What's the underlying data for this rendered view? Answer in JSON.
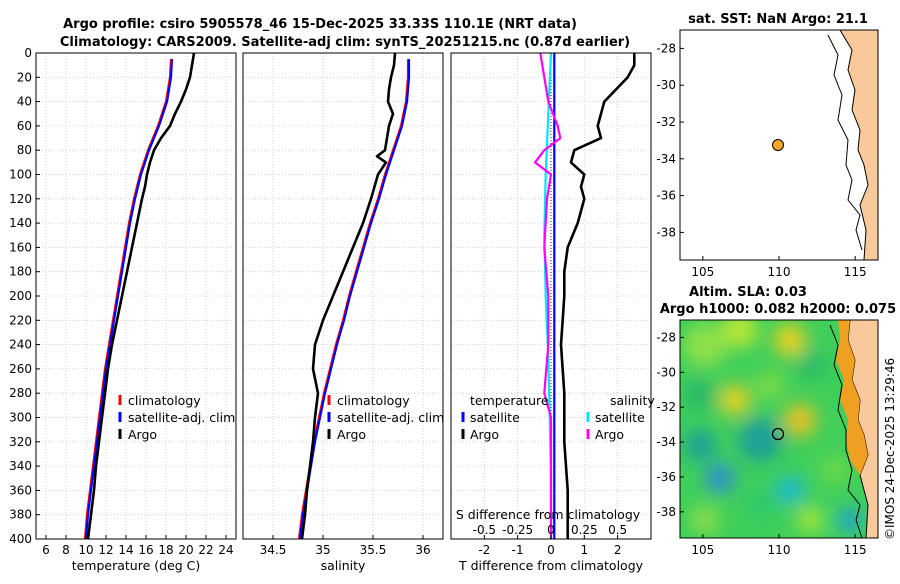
{
  "title_line1": "Argo profile: csiro 5905578_46 15-Dec-2025 33.33S 110.1E (NRT data)",
  "title_line2": "Climatology: CARS2009. Satellite-adj clim: synTS_20251215.nc (0.87d earlier)",
  "timestamp": "©IMOS 24-Dec-2025 13:29:46",
  "chart_data": [
    {
      "type": "line",
      "name": "temperature-profile",
      "xlabel": "temperature (deg C)",
      "ylabel": "",
      "xlim": [
        5,
        25
      ],
      "ylim": [
        400,
        0
      ],
      "xticks": [
        6,
        8,
        10,
        12,
        14,
        16,
        18,
        20,
        22,
        24
      ],
      "yticks": [
        0,
        20,
        40,
        60,
        80,
        100,
        120,
        140,
        160,
        180,
        200,
        220,
        240,
        260,
        280,
        300,
        320,
        340,
        360,
        380,
        400
      ],
      "grid": true,
      "legend": [
        "climatology",
        "satellite-adj. clim",
        "Argo"
      ],
      "series": [
        {
          "name": "climatology",
          "color": "#ff0000",
          "depth": [
            5,
            20,
            40,
            60,
            80,
            100,
            120,
            140,
            160,
            180,
            200,
            220,
            240,
            260,
            280,
            300,
            320,
            340,
            360,
            380,
            400
          ],
          "values": [
            18.5,
            18.4,
            18.0,
            17.2,
            16.2,
            15.4,
            14.8,
            14.3,
            13.9,
            13.5,
            13.1,
            12.7,
            12.3,
            11.9,
            11.6,
            11.3,
            11.0,
            10.7,
            10.4,
            10.1,
            9.9
          ]
        },
        {
          "name": "satellite-adj. clim",
          "color": "#0000ff",
          "depth": [
            5,
            20,
            40,
            60,
            80,
            100,
            120,
            140,
            160,
            180,
            200,
            220,
            240,
            260,
            280,
            300,
            320,
            340,
            360,
            380,
            400
          ],
          "values": [
            18.6,
            18.5,
            18.1,
            17.3,
            16.3,
            15.5,
            14.9,
            14.4,
            14.0,
            13.6,
            13.2,
            12.8,
            12.4,
            12.0,
            11.7,
            11.4,
            11.1,
            10.8,
            10.5,
            10.2,
            10.0
          ]
        },
        {
          "name": "Argo",
          "color": "#000000",
          "depth": [
            0,
            10,
            20,
            30,
            40,
            50,
            60,
            70,
            80,
            90,
            100,
            110,
            120,
            140,
            160,
            180,
            200,
            220,
            240,
            260,
            280,
            300,
            320,
            340,
            360,
            380,
            400
          ],
          "values": [
            20.8,
            20.6,
            20.4,
            20.0,
            19.5,
            18.9,
            18.4,
            17.5,
            16.8,
            16.4,
            16.1,
            15.9,
            15.6,
            15.1,
            14.6,
            14.1,
            13.6,
            13.1,
            12.6,
            12.2,
            11.9,
            11.6,
            11.3,
            11.0,
            10.8,
            10.5,
            10.2
          ]
        }
      ]
    },
    {
      "type": "line",
      "name": "salinity-profile",
      "xlabel": "salinity",
      "xlim": [
        34.2,
        36.2
      ],
      "ylim": [
        400,
        0
      ],
      "xticks": [
        34.5,
        35,
        35.5,
        36
      ],
      "grid": true,
      "legend": [
        "climatology",
        "satellite-adj. clim",
        "Argo"
      ],
      "series": [
        {
          "name": "climatology",
          "color": "#ff0000",
          "depth": [
            5,
            20,
            40,
            60,
            80,
            100,
            120,
            140,
            160,
            180,
            200,
            220,
            240,
            260,
            280,
            300,
            320,
            340,
            360,
            380,
            400
          ],
          "values": [
            35.85,
            35.85,
            35.83,
            35.78,
            35.7,
            35.62,
            35.55,
            35.47,
            35.4,
            35.33,
            35.26,
            35.2,
            35.13,
            35.07,
            35.01,
            34.96,
            34.91,
            34.87,
            34.83,
            34.79,
            34.76
          ]
        },
        {
          "name": "satellite-adj. clim",
          "color": "#0000ff",
          "depth": [
            5,
            20,
            40,
            60,
            80,
            100,
            120,
            140,
            160,
            180,
            200,
            220,
            240,
            260,
            280,
            300,
            320,
            340,
            360,
            380,
            400
          ],
          "values": [
            35.86,
            35.86,
            35.84,
            35.79,
            35.71,
            35.63,
            35.56,
            35.48,
            35.41,
            35.34,
            35.27,
            35.21,
            35.14,
            35.08,
            35.02,
            34.97,
            34.92,
            34.88,
            34.84,
            34.8,
            34.77
          ]
        },
        {
          "name": "Argo",
          "color": "#000000",
          "depth": [
            0,
            10,
            20,
            30,
            40,
            50,
            60,
            70,
            80,
            85,
            90,
            100,
            120,
            140,
            160,
            180,
            200,
            220,
            240,
            260,
            280,
            300,
            320,
            340,
            360,
            380,
            400
          ],
          "values": [
            35.72,
            35.71,
            35.68,
            35.66,
            35.65,
            35.7,
            35.66,
            35.64,
            35.62,
            35.54,
            35.63,
            35.55,
            35.48,
            35.4,
            35.3,
            35.2,
            35.1,
            35.0,
            34.92,
            34.9,
            34.95,
            34.92,
            34.9,
            34.87,
            34.84,
            34.82,
            34.79
          ]
        }
      ]
    },
    {
      "type": "line",
      "name": "difference-profile",
      "xlabel": "T difference from climatology",
      "x2label": "S difference from climatology",
      "xlim": [
        -3,
        3
      ],
      "ylim": [
        400,
        0
      ],
      "xticks": [
        -2,
        -1,
        0,
        1,
        2
      ],
      "x2lim": [
        -0.75,
        0.75
      ],
      "x2ticks": [
        -0.5,
        -0.25,
        0,
        0.25,
        0.5
      ],
      "grid": true,
      "legend_temperature_title": "temperature",
      "legend_salinity_title": "salinity",
      "legend_temperature": [
        "satellite",
        "Argo"
      ],
      "legend_salinity": [
        "satellite",
        "Argo"
      ],
      "series": [
        {
          "name": "temperature satellite",
          "color": "#0000ff",
          "depth": [
            0,
            50,
            100,
            150,
            200,
            250,
            300,
            350,
            400
          ],
          "values": [
            0.1,
            0.1,
            0.1,
            0.1,
            0.1,
            0.1,
            0.1,
            0.1,
            0.1
          ]
        },
        {
          "name": "temperature Argo",
          "color": "#000000",
          "depth": [
            0,
            10,
            20,
            40,
            50,
            60,
            70,
            80,
            90,
            100,
            110,
            120,
            140,
            160,
            180,
            200,
            240,
            280,
            320,
            360,
            400
          ],
          "values": [
            2.5,
            2.5,
            2.3,
            1.6,
            1.5,
            1.4,
            1.5,
            0.7,
            0.6,
            1.0,
            0.9,
            1.0,
            0.8,
            0.5,
            0.4,
            0.4,
            0.3,
            0.4,
            0.4,
            0.5,
            0.5
          ]
        },
        {
          "name": "salinity satellite",
          "color": "#00e5ff",
          "depth": [
            0,
            50,
            100,
            150,
            200,
            250,
            300,
            350,
            400
          ],
          "values": [
            0.0,
            -0.02,
            -0.04,
            -0.05,
            -0.04,
            -0.02,
            -0.01,
            0.0,
            0.0
          ]
        },
        {
          "name": "salinity Argo",
          "color": "#ff00ff",
          "depth": [
            0,
            20,
            40,
            60,
            70,
            80,
            90,
            100,
            120,
            160,
            200,
            240,
            280,
            300,
            320,
            360,
            400
          ],
          "values": [
            -0.08,
            -0.05,
            -0.02,
            0.05,
            0.07,
            -0.05,
            -0.12,
            0.0,
            -0.03,
            -0.05,
            -0.02,
            -0.02,
            -0.05,
            0.0,
            0.0,
            0.0,
            0.0
          ]
        }
      ]
    },
    {
      "type": "map",
      "name": "sst-map",
      "title": "sat. SST: NaN Argo: 21.1",
      "xlim": [
        103.5,
        116.5
      ],
      "ylim": [
        -39.5,
        -27
      ],
      "xticks": [
        105,
        110,
        115
      ],
      "yticks": [
        -28,
        -30,
        -32,
        -34,
        -36,
        -38
      ],
      "marker": {
        "lon": 110.1,
        "lat": -33.33,
        "color": "#f5a623"
      }
    },
    {
      "type": "heatmap",
      "name": "sla-map",
      "title_line1": "Altim. SLA: 0.03",
      "title_line2": "Argo h1000: 0.082 h2000: 0.075",
      "xlim": [
        103.5,
        116.5
      ],
      "ylim": [
        -39.5,
        -27
      ],
      "xticks": [
        105,
        110,
        115
      ],
      "yticks": [
        -28,
        -30,
        -32,
        -34,
        -36,
        -38
      ],
      "marker": {
        "lon": 110.1,
        "lat": -33.33
      }
    }
  ]
}
